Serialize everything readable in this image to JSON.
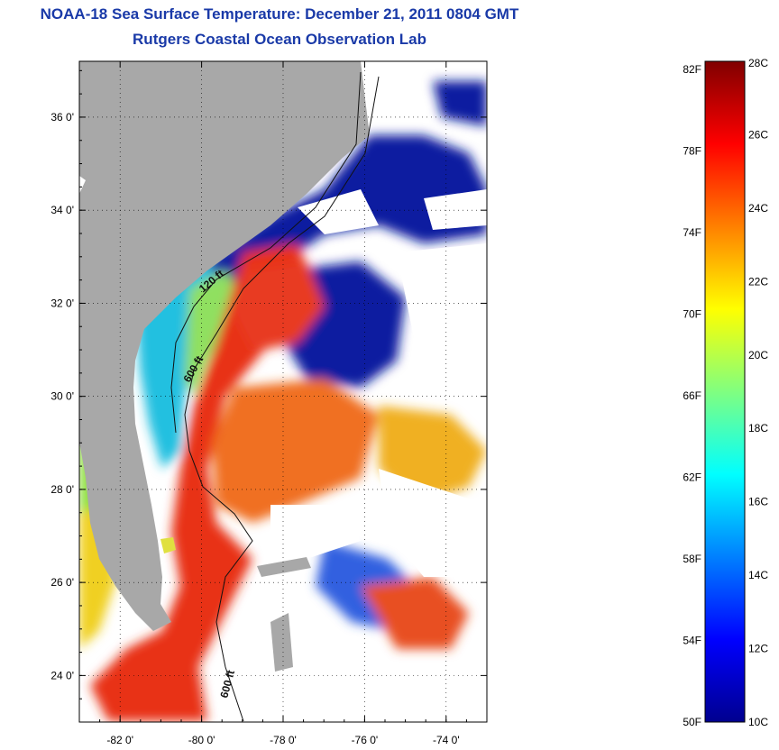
{
  "header": {
    "title": "NOAA-18 Sea Surface Temperature:  December 21, 2011 0804 GMT",
    "subtitle": "Rutgers Coastal Ocean Observation Lab"
  },
  "map": {
    "lon_range": [
      -83.0,
      -73.0
    ],
    "lat_range": [
      23.0,
      37.2
    ],
    "lon_ticks": [
      {
        "value": -82,
        "label": "-82 0'"
      },
      {
        "value": -80,
        "label": "-80 0'"
      },
      {
        "value": -78,
        "label": "-78 0'"
      },
      {
        "value": -76,
        "label": "-76 0'"
      },
      {
        "value": -74,
        "label": "-74 0'"
      }
    ],
    "lat_ticks": [
      {
        "value": 36,
        "label": "36 0'"
      },
      {
        "value": 34,
        "label": "34 0'"
      },
      {
        "value": 32,
        "label": "32 0'"
      },
      {
        "value": 30,
        "label": "30 0'"
      },
      {
        "value": 28,
        "label": "28 0'"
      },
      {
        "value": 26,
        "label": "26 0'"
      },
      {
        "value": 24,
        "label": "24 0'"
      }
    ],
    "contour_labels": [
      {
        "text": "120 ft"
      },
      {
        "text": "600 ft"
      },
      {
        "text": "600 ft"
      }
    ],
    "colors": {
      "land": "#a8a8a8",
      "cloud": "#ffffff",
      "cold": "#0a1aa0",
      "warm": "#e8301a"
    }
  },
  "colorbar": {
    "celsius": [
      "28C",
      "26C",
      "24C",
      "22C",
      "20C",
      "18C",
      "16C",
      "14C",
      "12C",
      "10C"
    ],
    "fahrenheit": [
      "82F",
      "78F",
      "74F",
      "70F",
      "66F",
      "62F",
      "58F",
      "54F",
      "50F"
    ],
    "min_c": 10,
    "max_c": 28,
    "colors_low_to_high": [
      "#00008f",
      "#0000ff",
      "#0080ff",
      "#00ffff",
      "#80ff80",
      "#ffff00",
      "#ff8000",
      "#ff0000",
      "#800000"
    ]
  }
}
